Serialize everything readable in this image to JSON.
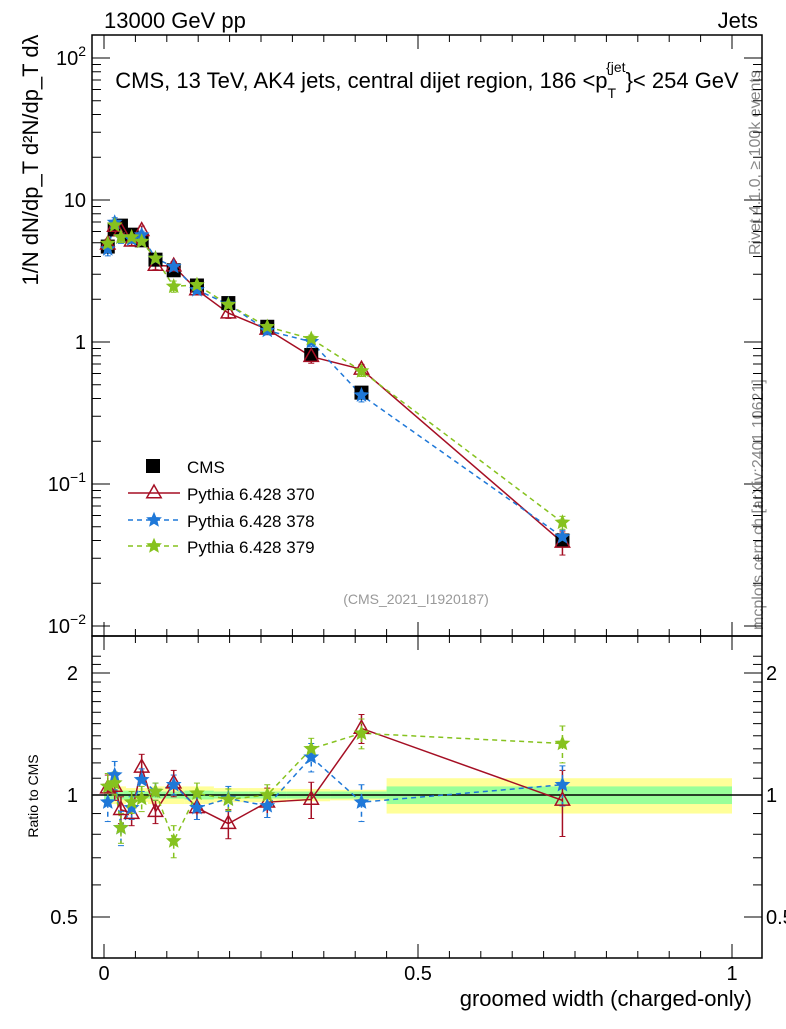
{
  "header": {
    "left": "13000 GeV pp",
    "right": "Jets"
  },
  "side_labels": {
    "rivet": "Rivet 4.1.0, ≥ 100k events",
    "mcplots": "mcplots.cern.ch [arXiv:2401.10621]"
  },
  "chart_data": {
    "type": "scatter",
    "title": "CMS, 13 TeV, AK4 jets, central dijet region, 186 <p_T^{jet}< 254 GeV",
    "title_parts": {
      "main": "CMS, 13 TeV, AK4 jets, central dijet region, 186 <p",
      "sub": "T",
      "sup": "{jet",
      "tail": "}< 254 GeV"
    },
    "analysis_id": "(CMS_2021_I1920187)",
    "xlabel": "groomed width (charged-only)",
    "ylabel_main": "1/N dN/dp_T d²N/dp_T dλ",
    "ylabel_ratio": "Ratio to CMS",
    "xlim": [
      -0.02,
      1.05
    ],
    "ylim_main": [
      0.0085,
      150
    ],
    "ylim_ratio": [
      0.42,
      2.35
    ],
    "yscale": "log",
    "x_ticks": [
      "0",
      "0.5",
      "1"
    ],
    "x_tick_values": [
      0,
      0.5,
      1
    ],
    "main_y_ticks": [
      {
        "v": 0.01,
        "base": "10",
        "exp": "−2"
      },
      {
        "v": 0.1,
        "base": "10",
        "exp": "−1"
      },
      {
        "v": 1,
        "base": "1",
        "exp": ""
      },
      {
        "v": 10,
        "base": "10",
        "exp": ""
      },
      {
        "v": 100,
        "base": "10",
        "exp": "2"
      }
    ],
    "ratio_y_ticks": [
      {
        "v": 0.5,
        "label": "0.5"
      },
      {
        "v": 1,
        "label": "1"
      },
      {
        "v": 2,
        "label": "2"
      }
    ],
    "legend_position": "middle-left",
    "x": [
      0.006,
      0.017,
      0.027,
      0.044,
      0.06,
      0.082,
      0.111,
      0.148,
      0.198,
      0.26,
      0.33,
      0.41,
      0.73
    ],
    "bin_edges": [
      0,
      0.011,
      0.022,
      0.035,
      0.05,
      0.07,
      0.093,
      0.128,
      0.175,
      0.23,
      0.29,
      0.36,
      0.45,
      1.0
    ],
    "cms": {
      "name": "CMS",
      "values": [
        4.7,
        6.2,
        6.6,
        5.7,
        5.2,
        3.8,
        3.2,
        2.5,
        1.88,
        1.28,
        0.81,
        0.44,
        0.04
      ],
      "band_inner": [
        0.03,
        0.03,
        0.025,
        0.025,
        0.02,
        0.02,
        0.02,
        0.025,
        0.02,
        0.02,
        0.02,
        0.02,
        0.05
      ],
      "band_outer": [
        0.06,
        0.05,
        0.05,
        0.04,
        0.04,
        0.05,
        0.05,
        0.05,
        0.04,
        0.04,
        0.035,
        0.03,
        0.1
      ]
    },
    "series": [
      {
        "name": "Pythia 6.428 370",
        "color": "#a50f24",
        "style": "solid",
        "marker": "triangle",
        "ratio": [
          1.04,
          1.05,
          0.92,
          0.9,
          1.17,
          0.91,
          1.07,
          0.93,
          0.85,
          0.96,
          0.975,
          1.46,
          0.97
        ],
        "ratio_err": [
          0.08,
          0.08,
          0.07,
          0.06,
          0.09,
          0.06,
          0.08,
          0.06,
          0.07,
          0.08,
          0.1,
          0.12,
          0.18
        ]
      },
      {
        "name": "Pythia 6.428 378",
        "color": "#1f78d8",
        "style": "dashed",
        "marker": "star",
        "ratio": [
          0.96,
          1.12,
          0.83,
          0.93,
          1.09,
          1.02,
          1.06,
          0.93,
          0.98,
          0.94,
          1.24,
          0.96,
          1.06
        ],
        "ratio_err": [
          0.1,
          0.09,
          0.08,
          0.06,
          0.07,
          0.05,
          0.06,
          0.06,
          0.07,
          0.06,
          0.1,
          0.1,
          0.12
        ]
      },
      {
        "name": "Pythia 6.428 379",
        "color": "#86c21f",
        "style": "dashed",
        "marker": "star",
        "ratio": [
          1.05,
          1.07,
          0.83,
          0.96,
          0.98,
          1.02,
          0.77,
          1.01,
          0.975,
          1.0,
          1.3,
          1.42,
          1.34
        ],
        "ratio_err": [
          0.08,
          0.07,
          0.07,
          0.06,
          0.07,
          0.05,
          0.07,
          0.06,
          0.06,
          0.06,
          0.08,
          0.12,
          0.14
        ]
      }
    ]
  }
}
